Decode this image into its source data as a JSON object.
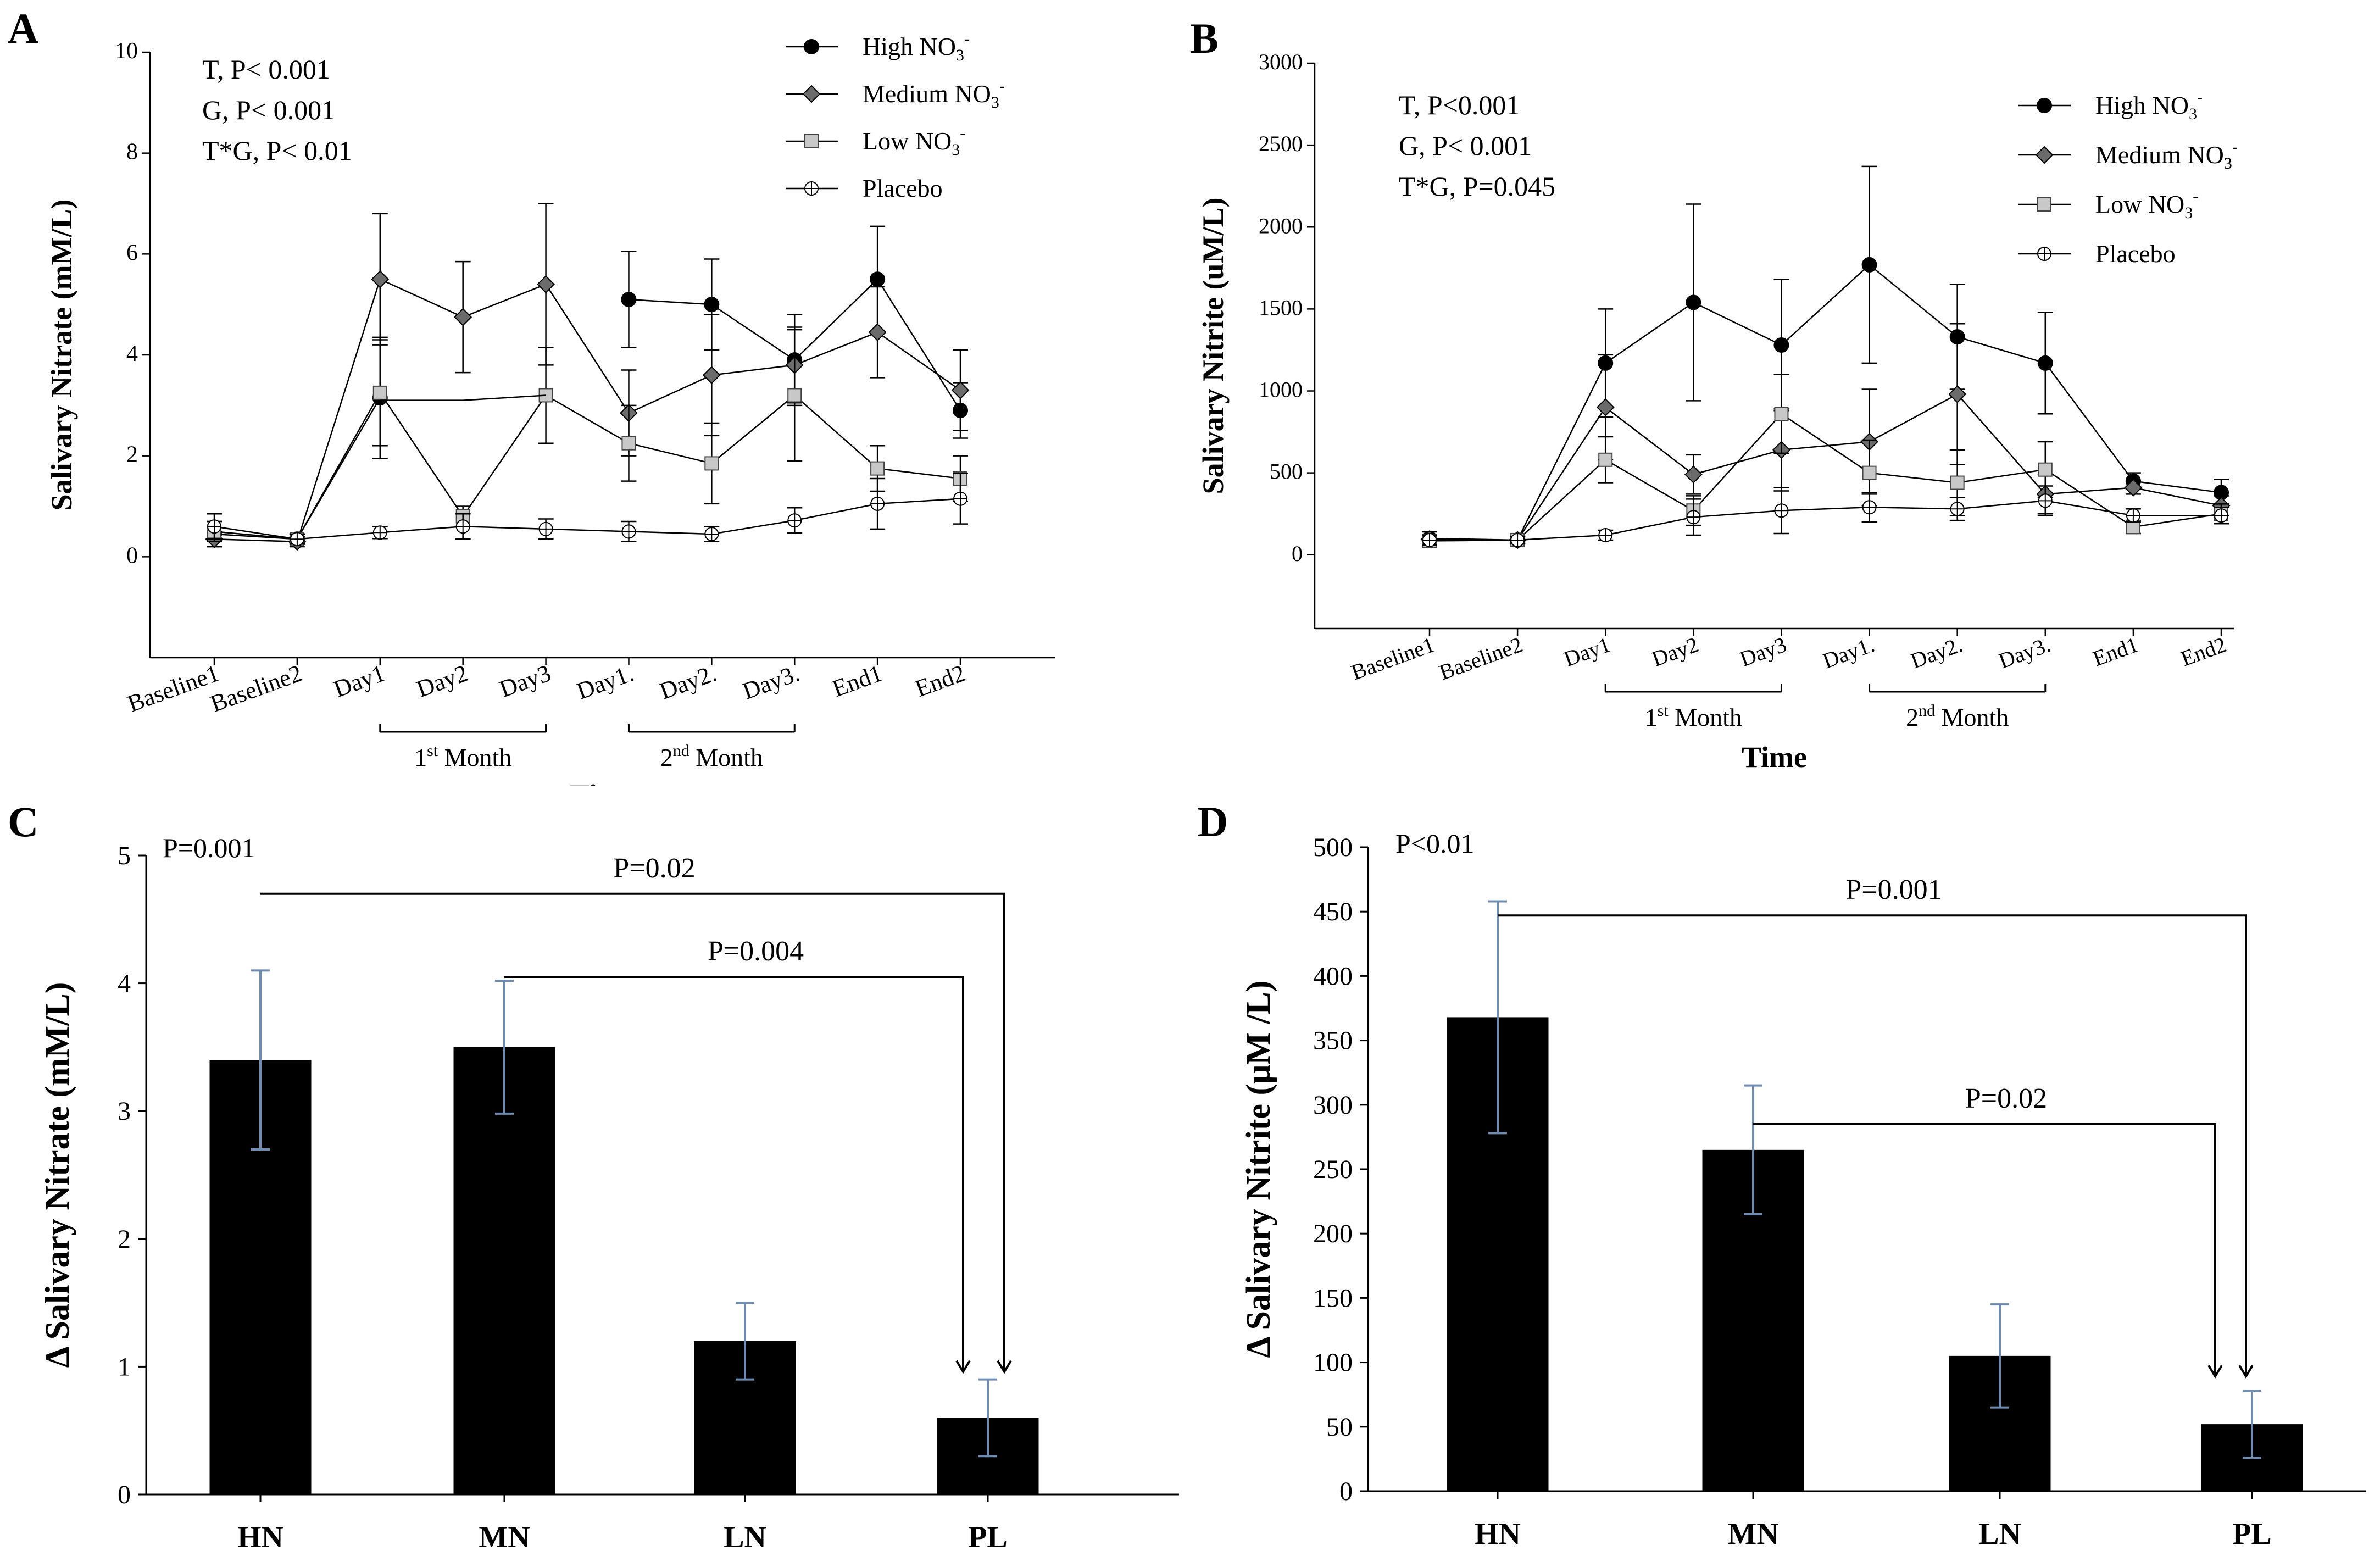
{
  "chart_data": [
    {
      "panel": "A",
      "type": "line",
      "ylabel": "Salivary Nitrate (mM/L)",
      "xlabel": "Time",
      "ylim": [
        -2,
        10
      ],
      "yticks": [
        0,
        2,
        4,
        6,
        8,
        10
      ],
      "categories": [
        "Baseline1",
        "Baseline2",
        "Day1",
        "Day2",
        "Day3",
        "Day1.",
        "Day2.",
        "Day3.",
        "End1",
        "End2"
      ],
      "groups": [
        {
          "label": "1st Month",
          "main": "1",
          "sup": "st",
          "rest": " Month",
          "from": 2,
          "to": 4
        },
        {
          "label": "2nd Month",
          "main": "2",
          "sup": "nd",
          "rest": " Month",
          "from": 5,
          "to": 7
        }
      ],
      "stats": [
        "T, P< 0.001",
        "G, P< 0.001",
        "T*G, P< 0.01"
      ],
      "legend": [
        {
          "main": "High NO",
          "sub": "3",
          "sup": "-"
        },
        {
          "main": "Medium NO",
          "sub": "3",
          "sup": "-"
        },
        {
          "main": "Low NO",
          "sub": "3",
          "sup": "-"
        },
        {
          "main": "Placebo",
          "sub": "",
          "sup": ""
        }
      ],
      "series": [
        {
          "name": "High NO3-",
          "marker": "circle",
          "values": [
            0.45,
            0.35,
            3.15,
            null,
            null,
            5.1,
            5.0,
            3.9,
            5.5,
            2.9
          ],
          "errors": [
            0.25,
            0.1,
            1.2,
            null,
            null,
            0.95,
            0.9,
            0.9,
            1.05,
            0.55
          ]
        },
        {
          "name": "Medium NO3-",
          "marker": "diamond",
          "values": [
            0.35,
            0.3,
            5.5,
            4.75,
            5.4,
            2.85,
            3.6,
            3.8,
            4.45,
            3.3
          ],
          "errors": [
            0.15,
            0.1,
            1.3,
            1.1,
            1.6,
            0.85,
            1.2,
            0.75,
            0.9,
            0.8
          ]
        },
        {
          "name": "Low NO3-",
          "marker": "square",
          "values": [
            0.5,
            0.35,
            3.25,
            0.8,
            3.2,
            2.25,
            1.85,
            3.2,
            1.75,
            1.55
          ],
          "errors": [
            0.2,
            0.1,
            1.05,
            0.2,
            0.95,
            0.75,
            0.8,
            1.3,
            0.45,
            0.45
          ]
        },
        {
          "name": "Placebo",
          "marker": "open",
          "values": [
            0.6,
            0.35,
            0.48,
            0.6,
            0.55,
            0.5,
            0.45,
            0.72,
            1.05,
            1.15
          ],
          "errors": [
            0.25,
            0.1,
            0.12,
            0.25,
            0.2,
            0.2,
            0.15,
            0.25,
            0.5,
            0.5
          ]
        },
        {
          "name": "Low NO3- connectors",
          "marker": "none",
          "values": [
            null,
            null,
            3.1,
            3.1,
            3.2,
            null,
            null,
            null,
            null,
            null
          ],
          "errors": [
            null,
            null,
            null,
            null,
            null,
            null,
            null,
            null,
            null,
            null
          ]
        }
      ]
    },
    {
      "panel": "B",
      "type": "line",
      "ylabel": "Salivary Nitrite (uM/L)",
      "xlabel": "Time",
      "ylim": [
        -450,
        3000
      ],
      "yticks": [
        0,
        500,
        1000,
        1500,
        2000,
        2500,
        3000
      ],
      "categories": [
        "Baseline1",
        "Baseline2",
        "Day1",
        "Day2",
        "Day3",
        "Day1.",
        "Day2.",
        "Day3.",
        "End1",
        "End2"
      ],
      "groups": [
        {
          "label": "1st Month",
          "main": "1",
          "sup": "st",
          "rest": " Month",
          "from": 2,
          "to": 4
        },
        {
          "label": "2nd Month",
          "main": "2",
          "sup": "nd",
          "rest": " Month",
          "from": 5,
          "to": 7
        }
      ],
      "stats": [
        "T, P<0.001",
        "G, P< 0.001",
        "T*G, P=0.045"
      ],
      "legend": [
        {
          "main": "High NO",
          "sub": "3",
          "sup": "-"
        },
        {
          "main": "Medium NO",
          "sub": "3",
          "sup": "-"
        },
        {
          "main": "Low NO",
          "sub": "3",
          "sup": "-"
        },
        {
          "main": "Placebo",
          "sub": "",
          "sup": ""
        }
      ],
      "series": [
        {
          "name": "High NO3-",
          "marker": "circle",
          "values": [
            100,
            90,
            1170,
            1540,
            1280,
            1770,
            1330,
            1170,
            450,
            380
          ],
          "errors": [
            40,
            25,
            330,
            600,
            400,
            600,
            320,
            310,
            50,
            80
          ]
        },
        {
          "name": "Medium NO3-",
          "marker": "diamond",
          "values": [
            95,
            90,
            900,
            490,
            640,
            690,
            980,
            370,
            410,
            300
          ],
          "errors": [
            30,
            20,
            320,
            120,
            250,
            320,
            430,
            120,
            40,
            60
          ]
        },
        {
          "name": "Low NO3-",
          "marker": "square",
          "values": [
            85,
            90,
            580,
            270,
            860,
            500,
            440,
            520,
            170,
            250
          ],
          "errors": [
            30,
            20,
            140,
            90,
            240,
            200,
            200,
            170,
            40,
            60
          ]
        },
        {
          "name": "Placebo",
          "marker": "open",
          "values": [
            90,
            90,
            120,
            230,
            270,
            290,
            280,
            330,
            240,
            240
          ],
          "errors": [
            30,
            20,
            30,
            110,
            140,
            90,
            70,
            90,
            40,
            50
          ]
        }
      ]
    },
    {
      "panel": "C",
      "type": "bar",
      "ylabel": "Δ Salivary Nitrate (mM/L)",
      "ylim": [
        0,
        5
      ],
      "yticks": [
        0,
        1,
        2,
        3,
        4,
        5
      ],
      "categories": [
        "HN",
        "MN",
        "LN",
        "PL"
      ],
      "values": [
        3.4,
        3.5,
        1.2,
        0.6
      ],
      "errors": [
        0.7,
        0.52,
        0.3,
        0.3
      ],
      "overall_p": "P=0.001",
      "comparisons": [
        {
          "label": "P=0.02",
          "from": 0,
          "to": 3,
          "y": 4.7
        },
        {
          "label": "P=0.004",
          "from": 1,
          "to": 3,
          "y": 4.05
        }
      ]
    },
    {
      "panel": "D",
      "type": "bar",
      "ylabel": "Δ Salivary Nitrite (μM /L)",
      "ylim": [
        0,
        500
      ],
      "yticks": [
        0,
        50,
        100,
        150,
        200,
        250,
        300,
        350,
        400,
        450,
        500
      ],
      "categories": [
        "HN",
        "MN",
        "LN",
        "PL"
      ],
      "values": [
        368,
        265,
        105,
        52
      ],
      "errors": [
        90,
        50,
        40,
        26
      ],
      "overall_p": "P<0.01",
      "comparisons": [
        {
          "label": "P=0.001",
          "from": 0,
          "to": 3,
          "y": 447
        },
        {
          "label": "P=0.02",
          "from": 1,
          "to": 3,
          "y": 285
        }
      ]
    }
  ]
}
